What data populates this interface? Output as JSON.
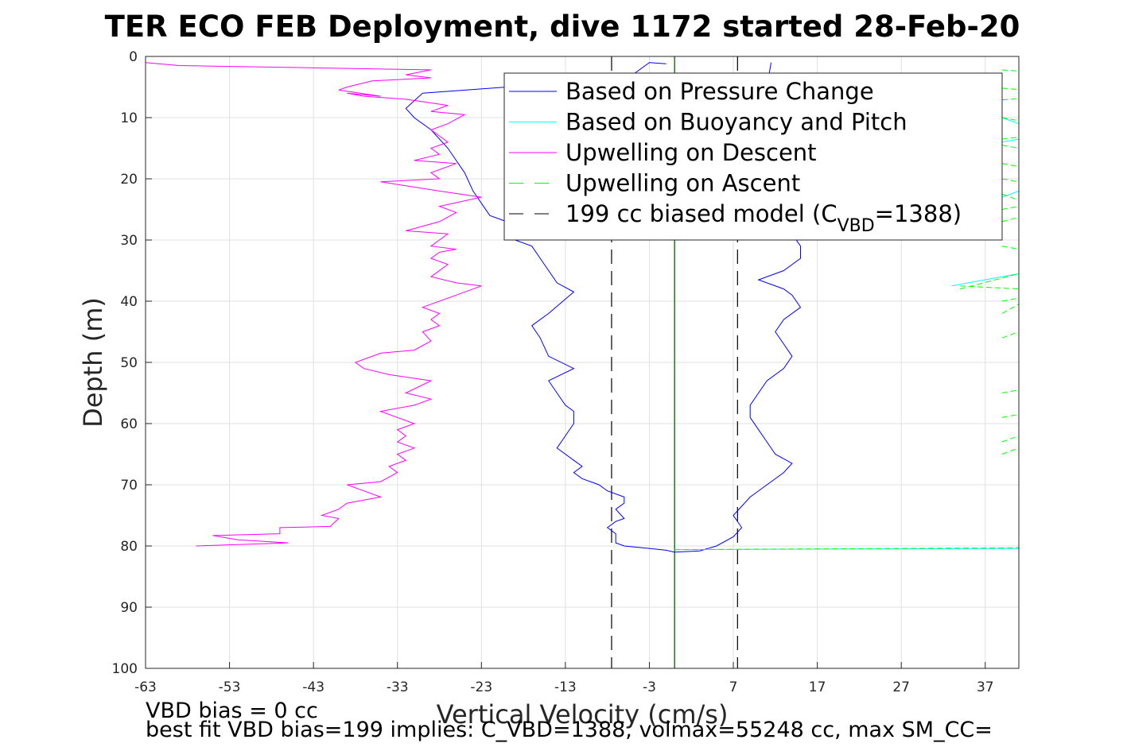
{
  "chart_data": {
    "type": "line",
    "title": "TER ECO FEB Deployment, dive 1172 started 28-Feb-20",
    "xlabel": "Vertical Velocity (cm/s)",
    "ylabel": "Depth (m)",
    "xlim": [
      -63,
      41
    ],
    "ylim": [
      0,
      100
    ],
    "y_reversed": true,
    "grid": true,
    "x_ticks": [
      -63,
      -53,
      -43,
      -33,
      -23,
      -13,
      -3,
      7,
      17,
      27,
      37
    ],
    "y_ticks": [
      0,
      10,
      20,
      30,
      40,
      50,
      60,
      70,
      80,
      90,
      100
    ],
    "legend_position": "top-right",
    "legend": [
      {
        "label": "Based on Pressure Change",
        "color": "#0000ff",
        "style": "solid"
      },
      {
        "label": "Based on Buoyancy and Pitch",
        "color": "#00ffff",
        "style": "solid"
      },
      {
        "label": "Upwelling on Descent",
        "color": "#ff00ff",
        "style": "solid"
      },
      {
        "label": "Upwelling on Ascent",
        "color": "#00ff00",
        "style": "dashed"
      },
      {
        "label_prefix": "199 cc biased model (C",
        "label_sub": "VBD",
        "label_suffix": "=1388)",
        "color": "#000000",
        "style": "dashed"
      }
    ],
    "series": [
      {
        "name": "Based on Pressure Change",
        "color": "#0000ff",
        "points": [
          [
            0,
            81
          ],
          [
            -1,
            80.7
          ],
          [
            -3,
            80.4
          ],
          [
            -6,
            80
          ],
          [
            -7,
            79.5
          ],
          [
            -7,
            78
          ],
          [
            -8,
            77
          ],
          [
            -7,
            76
          ],
          [
            -6,
            75.5
          ],
          [
            -7,
            74
          ],
          [
            -6,
            73
          ],
          [
            -6,
            72
          ],
          [
            -8,
            71
          ],
          [
            -9,
            70
          ],
          [
            -11,
            69
          ],
          [
            -12,
            68
          ],
          [
            -11,
            67
          ],
          [
            -12,
            66
          ],
          [
            -13,
            65
          ],
          [
            -14,
            64
          ],
          [
            -13,
            62
          ],
          [
            -12,
            60
          ],
          [
            -12,
            58
          ],
          [
            -13,
            57
          ],
          [
            -14,
            55
          ],
          [
            -15,
            53
          ],
          [
            -12,
            51
          ],
          [
            -15,
            49
          ],
          [
            -16,
            46
          ],
          [
            -17,
            44
          ],
          [
            -15,
            42
          ],
          [
            -12,
            38.5
          ],
          [
            -14,
            37
          ],
          [
            -15,
            35
          ],
          [
            -16,
            33
          ],
          [
            -17,
            31
          ],
          [
            -19,
            30
          ],
          [
            -18,
            28
          ],
          [
            -20,
            27
          ],
          [
            -22,
            26
          ],
          [
            -23,
            24
          ],
          [
            -24,
            22
          ],
          [
            -25,
            19
          ],
          [
            -26,
            17
          ],
          [
            -27,
            15
          ],
          [
            -29,
            12
          ],
          [
            -31,
            10
          ],
          [
            -32,
            8.5
          ],
          [
            -30,
            6
          ],
          [
            -20,
            5
          ],
          [
            -10,
            4
          ],
          [
            -5,
            3
          ],
          [
            -3,
            1
          ],
          [
            -1,
            1.2
          ]
        ]
      },
      {
        "name": "Based on Pressure Change",
        "color": "#0000ff",
        "points": [
          [
            0,
            81
          ],
          [
            3,
            80.8
          ],
          [
            5,
            80
          ],
          [
            7,
            78.5
          ],
          [
            8,
            77
          ],
          [
            7,
            75
          ],
          [
            8,
            73.5
          ],
          [
            9,
            72
          ],
          [
            11,
            70
          ],
          [
            13,
            68
          ],
          [
            14,
            66.5
          ],
          [
            12,
            65
          ],
          [
            11,
            63
          ],
          [
            10,
            61
          ],
          [
            9,
            59
          ],
          [
            9,
            57
          ],
          [
            10,
            55
          ],
          [
            11,
            53
          ],
          [
            13,
            51
          ],
          [
            14,
            49
          ],
          [
            13,
            47
          ],
          [
            12,
            45
          ],
          [
            13,
            43
          ],
          [
            15,
            41
          ],
          [
            14,
            39
          ],
          [
            13,
            38
          ],
          [
            10,
            36.5
          ],
          [
            13,
            35
          ],
          [
            15,
            33
          ],
          [
            15,
            31
          ],
          [
            14,
            29
          ],
          [
            13,
            27
          ],
          [
            12,
            24
          ],
          [
            12,
            20
          ],
          [
            12,
            15
          ],
          [
            12,
            10
          ],
          [
            11,
            5
          ],
          [
            11.5,
            1
          ]
        ]
      },
      {
        "name": "Upwelling on Descent",
        "color": "#ff00ff",
        "points": [
          [
            -57,
            80
          ],
          [
            -46,
            79.5
          ],
          [
            -52,
            79
          ],
          [
            -55,
            78.3
          ],
          [
            -47,
            78
          ],
          [
            -47,
            77
          ],
          [
            -41,
            76.8
          ],
          [
            -40,
            75.5
          ],
          [
            -42,
            75
          ],
          [
            -40,
            74
          ],
          [
            -39,
            73
          ],
          [
            -35,
            72
          ],
          [
            -37,
            71
          ],
          [
            -39,
            70
          ],
          [
            -35,
            69.5
          ],
          [
            -33,
            68
          ],
          [
            -34,
            67
          ],
          [
            -32,
            66
          ],
          [
            -33,
            65
          ],
          [
            -31,
            64
          ],
          [
            -33,
            63
          ],
          [
            -32,
            62
          ],
          [
            -33,
            61
          ],
          [
            -31,
            60
          ],
          [
            -33,
            59
          ],
          [
            -35,
            58
          ],
          [
            -31,
            57
          ],
          [
            -29,
            56
          ],
          [
            -32,
            55
          ],
          [
            -29,
            53
          ],
          [
            -34,
            52
          ],
          [
            -37,
            51
          ],
          [
            -38,
            50
          ],
          [
            -35,
            48.5
          ],
          [
            -31,
            48
          ],
          [
            -29,
            46.5
          ],
          [
            -30,
            45
          ],
          [
            -28,
            44
          ],
          [
            -29,
            43
          ],
          [
            -28,
            42
          ],
          [
            -30,
            41
          ],
          [
            -26,
            39
          ],
          [
            -23,
            37.5
          ],
          [
            -26,
            37
          ],
          [
            -29,
            36
          ],
          [
            -27,
            34
          ],
          [
            -29,
            33
          ],
          [
            -28,
            32
          ],
          [
            -26,
            31.5
          ],
          [
            -29,
            31
          ],
          [
            -28,
            30
          ],
          [
            -27,
            29
          ],
          [
            -32,
            28.5
          ],
          [
            -28,
            27
          ],
          [
            -26,
            25.5
          ],
          [
            -28,
            24.5
          ],
          [
            -23,
            23
          ],
          [
            -28,
            22
          ],
          [
            -35,
            20.5
          ],
          [
            -28,
            20
          ],
          [
            -29,
            19
          ],
          [
            -26,
            17.5
          ],
          [
            -31,
            17
          ],
          [
            -28,
            16
          ],
          [
            -29,
            15
          ],
          [
            -27,
            14
          ],
          [
            -28,
            13
          ],
          [
            -29,
            12
          ],
          [
            -27,
            11
          ],
          [
            -25,
            9.5
          ],
          [
            -29,
            9
          ],
          [
            -27,
            8
          ],
          [
            -32,
            7
          ],
          [
            -37,
            6.5
          ],
          [
            -39,
            6
          ],
          [
            -35,
            6.5
          ],
          [
            -40,
            5.5
          ],
          [
            -39,
            5
          ],
          [
            -36,
            4
          ],
          [
            -29,
            3.5
          ],
          [
            -32,
            3
          ],
          [
            -29,
            2.2
          ],
          [
            -59,
            1.5
          ],
          [
            -63,
            1
          ]
        ]
      }
    ],
    "ascent_dash_segments": [
      [
        [
          39,
          2.2
        ],
        [
          41,
          2.4
        ]
      ],
      [
        [
          39,
          5.2
        ],
        [
          41,
          5.4
        ]
      ],
      [
        [
          39,
          7.1
        ],
        [
          41,
          6.9
        ]
      ],
      [
        [
          39,
          10
        ],
        [
          41,
          10.5
        ]
      ],
      [
        [
          39,
          13.5
        ],
        [
          41,
          13.2
        ]
      ],
      [
        [
          39,
          14.5
        ],
        [
          41,
          15
        ]
      ],
      [
        [
          39,
          17.5
        ],
        [
          41,
          18
        ]
      ],
      [
        [
          39,
          20
        ],
        [
          41,
          20.5
        ]
      ],
      [
        [
          39,
          22.5
        ],
        [
          41,
          23.5
        ]
      ],
      [
        [
          39,
          25
        ],
        [
          41,
          24.5
        ]
      ],
      [
        [
          39,
          27
        ],
        [
          41,
          26.3
        ]
      ],
      [
        [
          39,
          31
        ],
        [
          41,
          31.5
        ]
      ],
      [
        [
          34,
          38
        ],
        [
          41,
          35.5
        ]
      ],
      [
        [
          34,
          37.5
        ],
        [
          41,
          38
        ]
      ],
      [
        [
          39,
          40
        ],
        [
          41,
          39.5
        ]
      ],
      [
        [
          39,
          42
        ],
        [
          41,
          40.5
        ]
      ],
      [
        [
          39,
          46
        ],
        [
          41,
          45
        ]
      ],
      [
        [
          39,
          55
        ],
        [
          41,
          54.5
        ]
      ],
      [
        [
          39,
          59
        ],
        [
          41,
          58.5
        ]
      ],
      [
        [
          39,
          63
        ],
        [
          41,
          62
        ]
      ],
      [
        [
          39,
          65
        ],
        [
          41,
          64
        ]
      ],
      [
        [
          0,
          80.6
        ],
        [
          41,
          80.3
        ]
      ]
    ],
    "buoyancy_cyan_segments": [
      [
        [
          39,
          10
        ],
        [
          41,
          11
        ]
      ],
      [
        [
          39,
          14
        ],
        [
          41,
          13.5
        ]
      ],
      [
        [
          39,
          23
        ],
        [
          41,
          22
        ]
      ],
      [
        [
          33,
          37.5
        ],
        [
          41,
          35.5
        ]
      ],
      [
        [
          0,
          80.6
        ],
        [
          41,
          80.4
        ]
      ]
    ],
    "vertical_lines": [
      {
        "x": -7.5,
        "style": "dashed",
        "color": "#000000"
      },
      {
        "x": 7.5,
        "style": "dashed",
        "color": "#000000"
      },
      {
        "x": 0,
        "style": "solid",
        "color": "#000000"
      },
      {
        "x": 0,
        "style": "solid",
        "color": "#008000"
      }
    ],
    "annotations": [
      "VBD bias = 0 cc",
      "best fit VBD bias=199 implies: C_VBD=1388, volmax=55248 cc, max SM_CC="
    ]
  }
}
